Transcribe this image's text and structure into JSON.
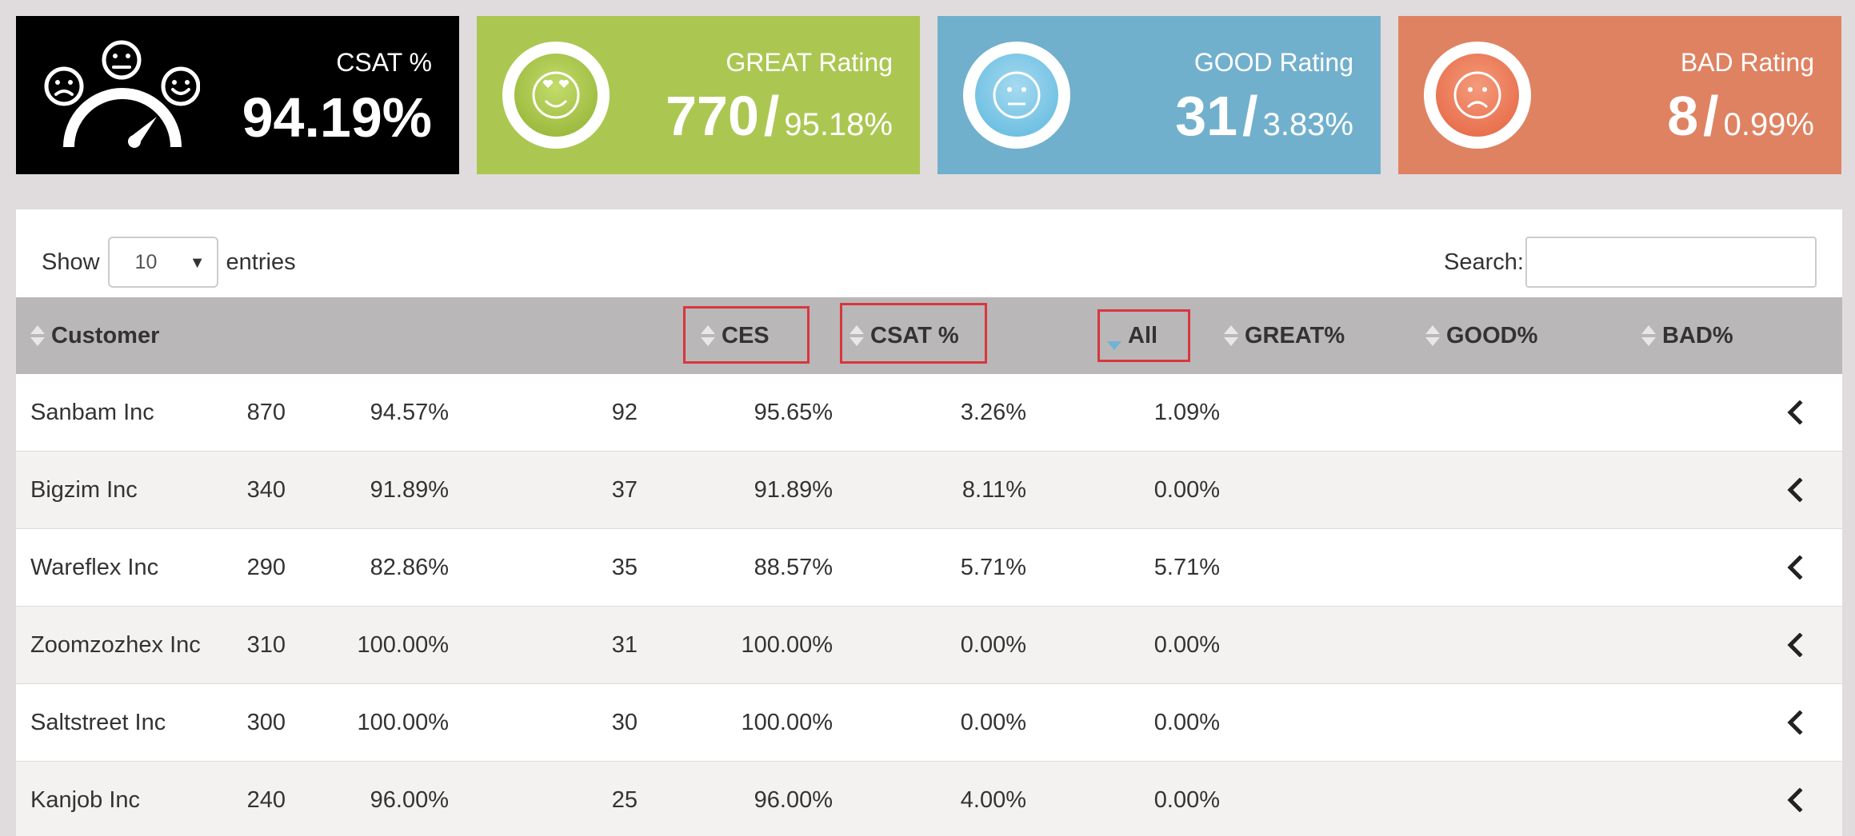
{
  "cards": {
    "csat": {
      "title": "CSAT %",
      "value": "94.19%",
      "icon": "satisfaction-gauge-icon",
      "color": "#000000"
    },
    "great": {
      "title": "GREAT Rating",
      "count": "770",
      "sep": "/",
      "pct": "95.18%",
      "icon": "heart-eyes-face-icon",
      "color": "#abc752"
    },
    "good": {
      "title": "GOOD Rating",
      "count": "31",
      "sep": "/",
      "pct": "3.83%",
      "icon": "neutral-face-icon",
      "color": "#71b0cc"
    },
    "bad": {
      "title": "BAD Rating",
      "count": "8",
      "sep": "/",
      "pct": "0.99%",
      "icon": "sad-face-icon",
      "color": "#df8262"
    }
  },
  "table_controls": {
    "show_label": "Show",
    "page_size": "10",
    "entries_label": "entries",
    "search_label": "Search:",
    "search_value": ""
  },
  "columns": {
    "customer": "Customer",
    "ces": "CES",
    "csat": "CSAT %",
    "all": "All",
    "great": "GREAT%",
    "good": "GOOD%",
    "bad": "BAD%"
  },
  "sorted_column": "All",
  "sort_direction": "descending",
  "rows": [
    {
      "customer": "Sanbam Inc",
      "ces": "870",
      "csat": "94.57%",
      "all": "92",
      "great": "95.65%",
      "good": "3.26%",
      "bad": "1.09%"
    },
    {
      "customer": "Bigzim Inc",
      "ces": "340",
      "csat": "91.89%",
      "all": "37",
      "great": "91.89%",
      "good": "8.11%",
      "bad": "0.00%"
    },
    {
      "customer": "Wareflex Inc",
      "ces": "290",
      "csat": "82.86%",
      "all": "35",
      "great": "88.57%",
      "good": "5.71%",
      "bad": "5.71%"
    },
    {
      "customer": "Zoomzozhex Inc",
      "ces": "310",
      "csat": "100.00%",
      "all": "31",
      "great": "100.00%",
      "good": "0.00%",
      "bad": "0.00%"
    },
    {
      "customer": "Saltstreet Inc",
      "ces": "300",
      "csat": "100.00%",
      "all": "30",
      "great": "100.00%",
      "good": "0.00%",
      "bad": "0.00%"
    },
    {
      "customer": "Kanjob Inc",
      "ces": "240",
      "csat": "96.00%",
      "all": "25",
      "great": "96.00%",
      "good": "4.00%",
      "bad": "0.00%"
    }
  ],
  "row_action_icon": "chevron-left-icon"
}
